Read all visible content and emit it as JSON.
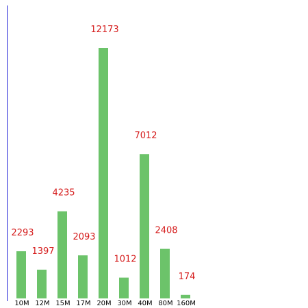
{
  "chart_data": {
    "type": "bar",
    "categories": [
      "10M",
      "12M",
      "15M",
      "17M",
      "20M",
      "30M",
      "40M",
      "80M",
      "160M"
    ],
    "values": [
      2293,
      1397,
      4235,
      2093,
      12173,
      1012,
      7012,
      2408,
      174
    ],
    "title": "",
    "xlabel": "",
    "ylabel": "",
    "ylim": [
      0,
      12173
    ],
    "grid": false,
    "legend": "none",
    "data_labels": true,
    "colors": {
      "bar": "#6cc36a",
      "value_label": "#d51b1b",
      "axis": "#1f1fd6"
    }
  }
}
